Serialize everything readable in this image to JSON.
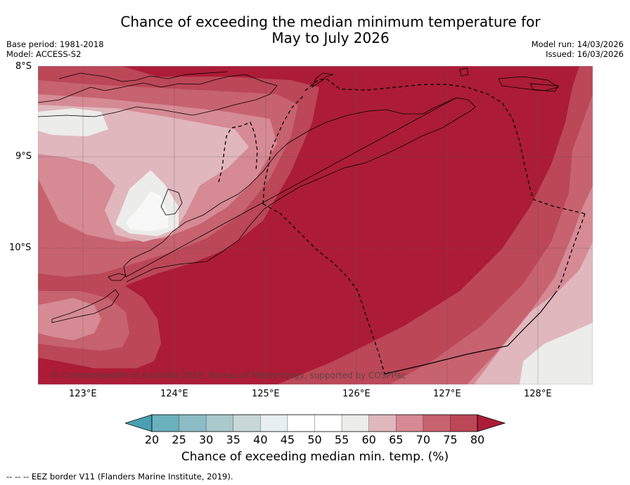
{
  "title": {
    "line1": "Chance of exceeding the median minimum temperature for",
    "line2": "May to July 2026"
  },
  "meta": {
    "base_period": "Base period: 1981-2018",
    "model": "Model: ACCESS-S2",
    "model_run": "Model run: 14/03/2026",
    "issued": "Issued: 16/03/2026"
  },
  "map": {
    "lat_labels": [
      "8°S",
      "9°S",
      "10°S"
    ],
    "lon_labels": [
      "123°E",
      "124°E",
      "125°E",
      "126°E",
      "127°E",
      "128°E"
    ],
    "attribution": "© Commonwealth of Australia 2026, Bureau of Meteorology, supported by COSPPac"
  },
  "colorbar": {
    "ticks": [
      "20",
      "25",
      "30",
      "35",
      "40",
      "45",
      "50",
      "55",
      "60",
      "65",
      "70",
      "75",
      "80"
    ],
    "colors": [
      "#4aa0b0",
      "#6bb0bd",
      "#8cbcc6",
      "#a9c9cd",
      "#c8d8d8",
      "#e8eff2",
      "#ffffff",
      "#ffffff",
      "#ececea",
      "#e0b7bd",
      "#d58a94",
      "#c7626f",
      "#bb4757",
      "#ac1c36"
    ],
    "label": "Chance of exceeding median min. temp. (%)"
  },
  "footer": "--  --  -- EEZ border V11 (Flanders Marine Institute, 2019)."
}
